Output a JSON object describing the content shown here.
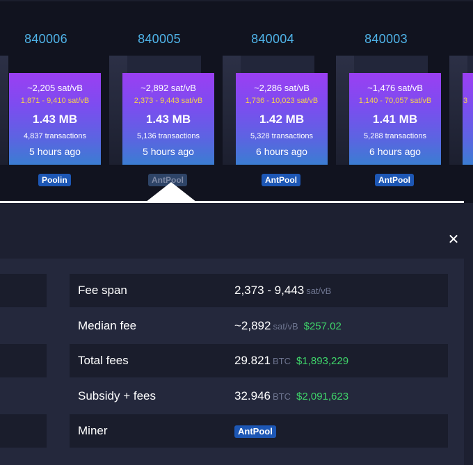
{
  "blocks": [
    {
      "height": "",
      "median_fee": "",
      "fee_range": "3",
      "size": "",
      "tx_count": "",
      "time": "",
      "pool": ""
    },
    {
      "height": "840006",
      "median_fee": "~2,205 sat/vB",
      "fee_range": "1,871 - 9,410 sat/vB",
      "size": "1.43 MB",
      "tx_count": "4,837 transactions",
      "time": "5 hours ago",
      "pool": "Poolin"
    },
    {
      "height": "840005",
      "median_fee": "~2,892 sat/vB",
      "fee_range": "2,373 - 9,443 sat/vB",
      "size": "1.43 MB",
      "tx_count": "5,136 transactions",
      "time": "5 hours ago",
      "pool": "AntPool"
    },
    {
      "height": "840004",
      "median_fee": "~2,286 sat/vB",
      "fee_range": "1,736 - 10,023 sat/vB",
      "size": "1.42 MB",
      "tx_count": "5,328 transactions",
      "time": "6 hours ago",
      "pool": "AntPool"
    },
    {
      "height": "840003",
      "median_fee": "~1,476 sat/vB",
      "fee_range": "1,140 - 70,057 sat/vB",
      "size": "1.41 MB",
      "tx_count": "5,288 transactions",
      "time": "6 hours ago",
      "pool": "AntPool"
    }
  ],
  "selected_block_index": 2,
  "close_icon": "close-icon",
  "details": {
    "fee_span": {
      "label": "Fee span",
      "value": "2,373 - 9,443",
      "unit": "sat/vB"
    },
    "median_fee": {
      "label": "Median fee",
      "value": "~2,892",
      "unit": "sat/vB",
      "fiat": "$257.02"
    },
    "total_fees": {
      "label": "Total fees",
      "value": "29.821",
      "unit": "BTC",
      "fiat": "$1,893,229"
    },
    "subsidy_fees": {
      "label": "Subsidy + fees",
      "value": "32.946",
      "unit": "BTC",
      "fiat": "$2,091,623"
    },
    "miner": {
      "label": "Miner",
      "value": "AntPool"
    }
  },
  "colors": {
    "background": "#11131f",
    "block_height": "#4fb3e8",
    "fee_range": "#f3d24e",
    "pool_badge": "#1d57b5",
    "fiat": "#3fd46a",
    "block_gradient_top": "#9b3ff2",
    "block_gradient_bottom": "#3b7dd2"
  }
}
